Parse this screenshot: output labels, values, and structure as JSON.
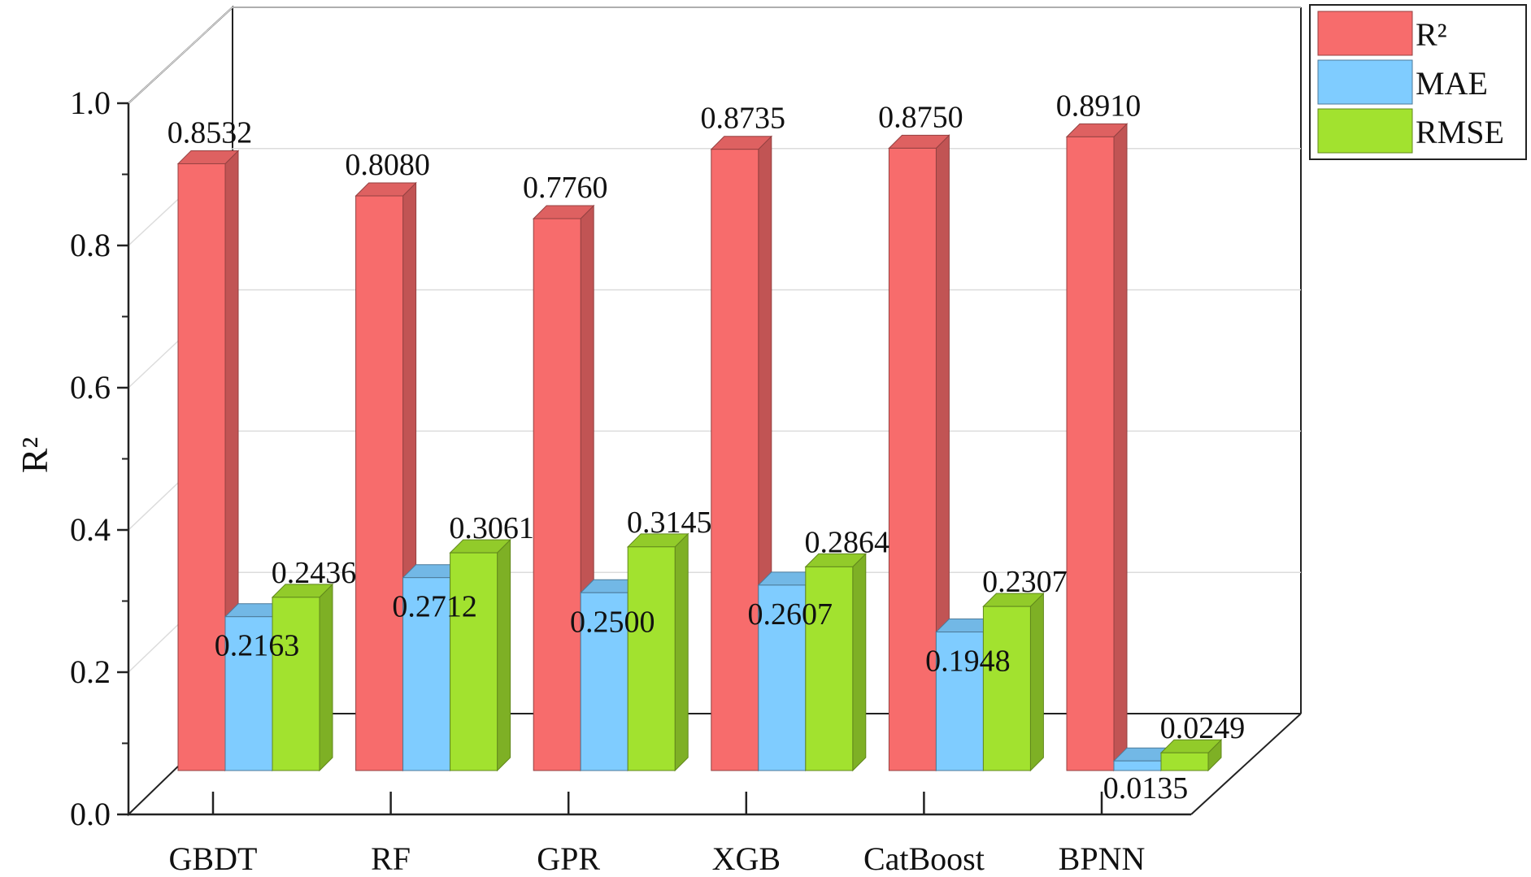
{
  "chart_data": {
    "type": "bar",
    "title": "",
    "xlabel": "",
    "ylabel": "R²",
    "ylim": [
      0,
      1.0
    ],
    "yticks": [
      "0.0",
      "0.2",
      "0.4",
      "0.6",
      "0.8",
      "1.0"
    ],
    "categories": [
      "GBDT",
      "RF",
      "GPR",
      "XGB",
      "CatBoost",
      "BPNN"
    ],
    "series": [
      {
        "name": "R²",
        "color": "#F76C6C",
        "values": [
          0.8532,
          0.808,
          0.776,
          0.8735,
          0.875,
          0.891
        ],
        "labels": [
          "0.8532",
          "0.8080",
          "0.7760",
          "0.8735",
          "0.8750",
          "0.8910"
        ]
      },
      {
        "name": "MAE",
        "color": "#7FCCFF",
        "values": [
          0.2163,
          0.2712,
          0.25,
          0.2607,
          0.1948,
          0.0135
        ],
        "labels": [
          "0.2163",
          "0.2712",
          "0.2500",
          "0.2607",
          "0.1948",
          "0.0135"
        ]
      },
      {
        "name": "RMSE",
        "color": "#A2E22F",
        "values": [
          0.2436,
          0.3061,
          0.3145,
          0.2864,
          0.2307,
          0.0249
        ],
        "labels": [
          "0.2436",
          "0.3061",
          "0.3145",
          "0.2864",
          "0.2307",
          "0.0249"
        ]
      }
    ],
    "legend": {
      "position": "top-right"
    },
    "grid": true,
    "style": "3d-bars"
  }
}
